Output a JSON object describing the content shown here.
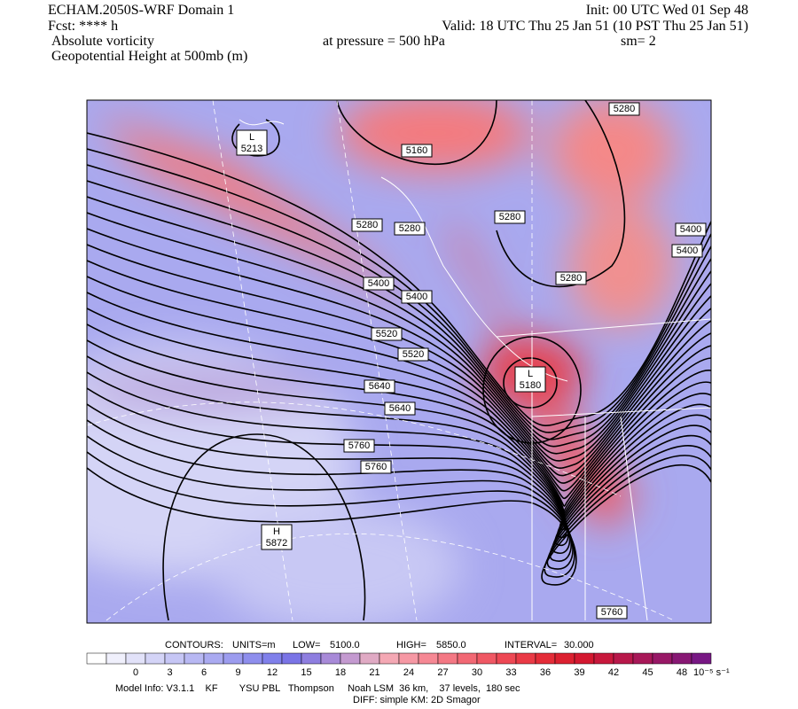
{
  "header": {
    "left": [
      "ECHAM.2050S-WRF Domain 1",
      "Fcst: **** h",
      "Absolute vorticity",
      "Geopotential Height at 500mb (m)"
    ],
    "init": "Init: 00 UTC Wed 01 Sep 48",
    "valid": "Valid: 18 UTC Thu 25 Jan 51 (10 PST Thu 25 Jan 51)",
    "pressure": "at pressure =  500 hPa",
    "smoothing": "sm= 2"
  },
  "map": {
    "contour_labels": [
      5280,
      5160,
      5280,
      5280,
      5280,
      5400,
      5400,
      5280,
      5400,
      5400,
      5520,
      5520,
      5640,
      5640,
      5760,
      5760,
      5760
    ],
    "extrema": [
      {
        "kind": "L",
        "value": 5213
      },
      {
        "kind": "L",
        "value": 5180
      },
      {
        "kind": "H",
        "value": 5872
      }
    ]
  },
  "contour_info": {
    "contours": "CONTOURS:",
    "units": "UNITS=m",
    "low": "LOW=",
    "low_value": "5100.0",
    "high": "HIGH=",
    "high_value": "5850.0",
    "interval": "INTERVAL=",
    "interval_value": "30.000"
  },
  "colorbar": {
    "ticks": [
      0,
      3,
      6,
      9,
      12,
      15,
      18,
      21,
      24,
      27,
      30,
      33,
      36,
      39,
      42,
      45,
      48
    ],
    "unit": "10⁻⁵ s⁻¹",
    "colors": [
      "#ffffff",
      "#f0f0fc",
      "#e2e2f9",
      "#d4d4f7",
      "#c6c6f5",
      "#b8b8f3",
      "#aaaaf1",
      "#9c9cef",
      "#8e8eed",
      "#8080eb",
      "#7a74e6",
      "#8e7ee0",
      "#a88ad8",
      "#c49ad0",
      "#e0aac4",
      "#f4a8b4",
      "#f698a4",
      "#f68894",
      "#f47884",
      "#f26874",
      "#f05864",
      "#ee4854",
      "#ea3a46",
      "#e42c38",
      "#dc2030",
      "#d41830",
      "#c8183c",
      "#b8184a",
      "#a81858",
      "#981866",
      "#881874",
      "#781884"
    ]
  },
  "footer": [
    "Model Info: V3.1.1    KF        YSU PBL   Thompson     Noah LSM  36 km,    37 levels,  180 sec",
    "DIFF: simple KM: 2D Smagor"
  ]
}
